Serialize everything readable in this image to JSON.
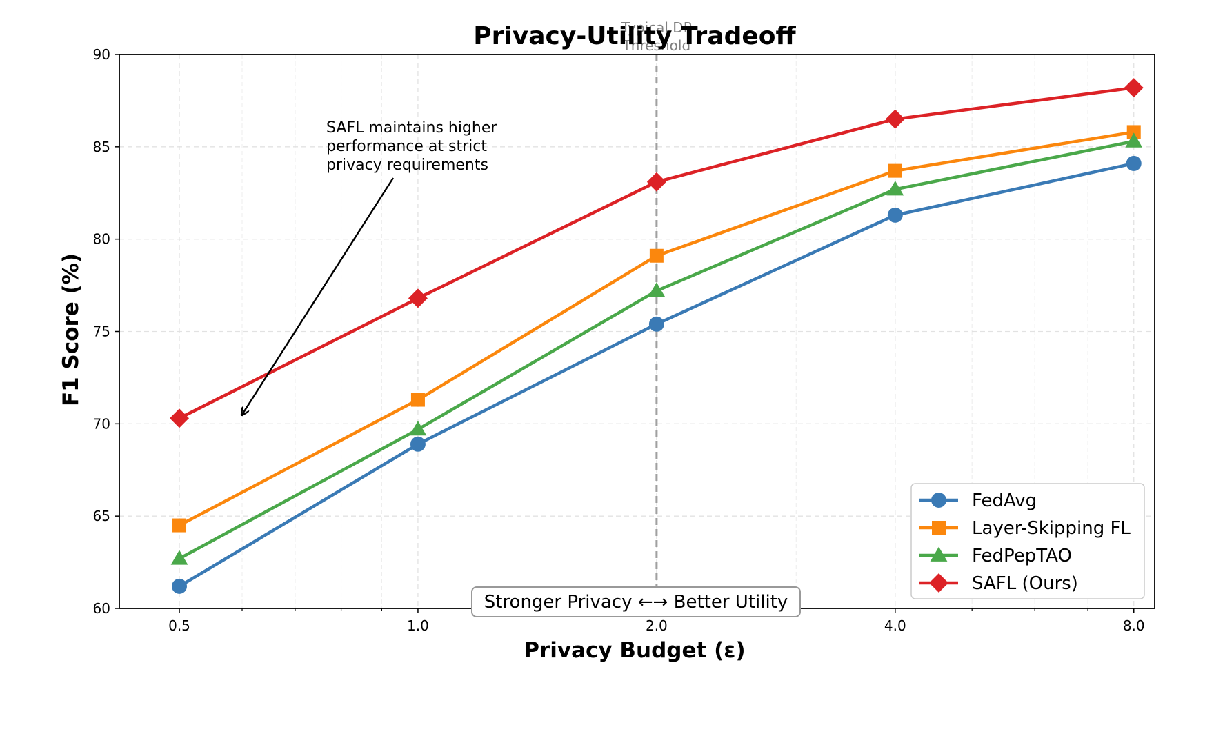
{
  "chart_data": {
    "type": "line",
    "title": "Privacy-Utility Tradeoff",
    "xlabel": "Privacy Budget (ε)",
    "ylabel": "F1 Score (%)",
    "x_scale": "log2",
    "x": [
      0.5,
      1.0,
      2.0,
      4.0,
      8.0
    ],
    "x_tick_labels": [
      "0.5",
      "1.0",
      "2.0",
      "4.0",
      "8.0"
    ],
    "y_ticks": [
      60,
      65,
      70,
      75,
      80,
      85,
      90
    ],
    "ylim": [
      60,
      90
    ],
    "grid": true,
    "legend_position": "lower-right",
    "series": [
      {
        "name": "FedAvg",
        "values": [
          61.2,
          68.9,
          75.4,
          81.3,
          84.1
        ],
        "color": "#3a7ab5",
        "marker": "circle"
      },
      {
        "name": "Layer-Skipping FL",
        "values": [
          64.5,
          71.3,
          79.1,
          83.7,
          85.8
        ],
        "color": "#fb870d",
        "marker": "square"
      },
      {
        "name": "FedPepTAO",
        "values": [
          62.7,
          69.7,
          77.2,
          82.7,
          85.3
        ],
        "color": "#4aa84a",
        "marker": "triangle"
      },
      {
        "name": "SAFL (Ours)",
        "values": [
          70.3,
          76.8,
          83.1,
          86.5,
          88.2
        ],
        "color": "#dc2226",
        "marker": "diamond"
      }
    ],
    "reference_line": {
      "x": 2.0,
      "label_lines": [
        "Typical DP",
        "Threshold"
      ],
      "color": "#a0a0a0"
    },
    "annotations": [
      {
        "text_lines": [
          "SAFL maintains higher",
          "performance at strict",
          "privacy requirements"
        ],
        "arrow_to": {
          "x": 0.6,
          "y": 70.5
        }
      }
    ],
    "bottom_label": "Stronger Privacy ←→ Better Utility"
  }
}
